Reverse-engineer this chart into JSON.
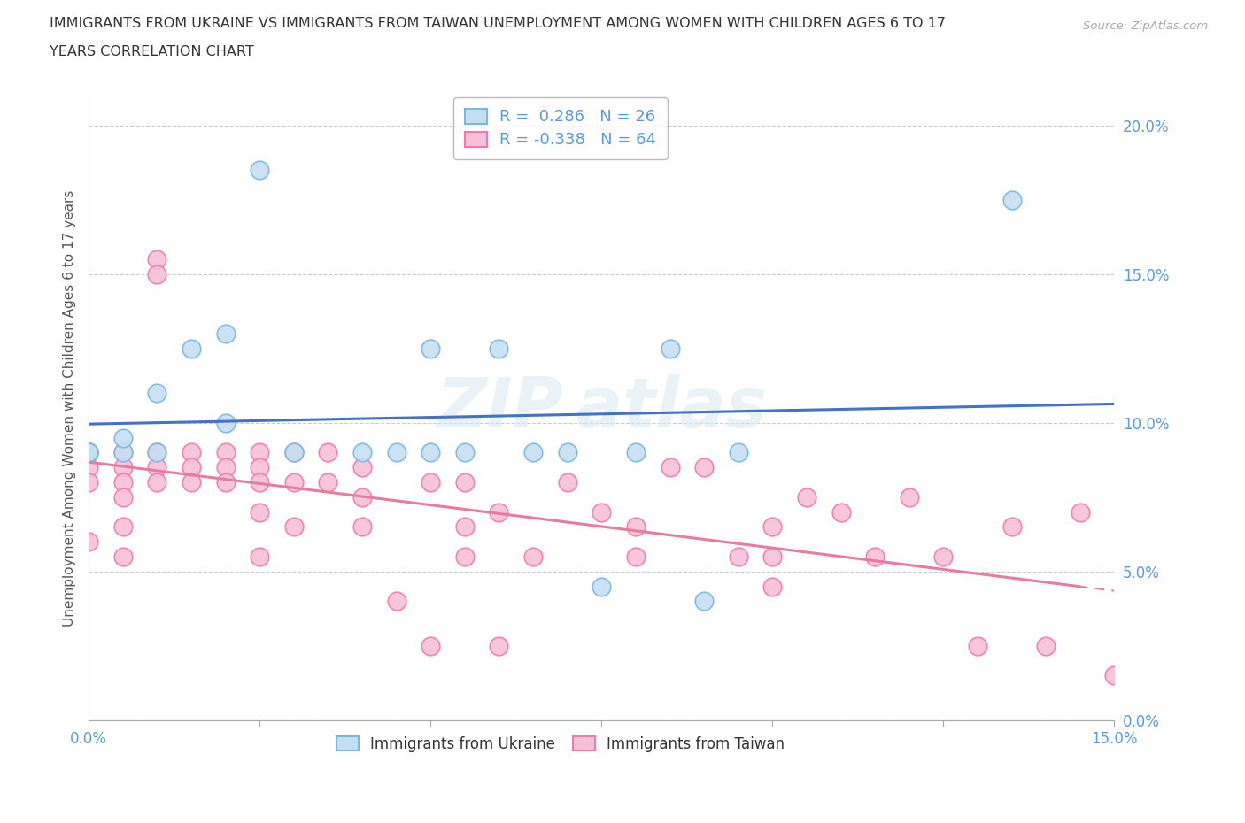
{
  "title_line1": "IMMIGRANTS FROM UKRAINE VS IMMIGRANTS FROM TAIWAN UNEMPLOYMENT AMONG WOMEN WITH CHILDREN AGES 6 TO 17",
  "title_line2": "YEARS CORRELATION CHART",
  "source": "Source: ZipAtlas.com",
  "ylabel": "Unemployment Among Women with Children Ages 6 to 17 years",
  "xlim": [
    0.0,
    0.15
  ],
  "ylim": [
    0.0,
    0.21
  ],
  "yticks": [
    0.0,
    0.05,
    0.1,
    0.15,
    0.2
  ],
  "ytick_labels": [
    "0.0%",
    "5.0%",
    "10.0%",
    "15.0%",
    "20.0%"
  ],
  "xtick_positions": [
    0.0,
    0.025,
    0.05,
    0.075,
    0.1,
    0.125,
    0.15
  ],
  "xtick_labels_show": [
    "0.0%",
    "",
    "",
    "",
    "",
    "",
    "15.0%"
  ],
  "ukraine_color": "#7ab8e0",
  "ukraine_fill": "#c5dff2",
  "taiwan_color": "#f07ab0",
  "taiwan_fill": "#f8c0d8",
  "ukraine_R": 0.286,
  "ukraine_N": 26,
  "taiwan_R": -0.338,
  "taiwan_N": 64,
  "legend_label_ukraine": "Immigrants from Ukraine",
  "legend_label_taiwan": "Immigrants from Taiwan",
  "ukraine_x": [
    0.0,
    0.0,
    0.0,
    0.005,
    0.005,
    0.01,
    0.01,
    0.015,
    0.02,
    0.02,
    0.025,
    0.03,
    0.04,
    0.045,
    0.05,
    0.05,
    0.055,
    0.06,
    0.065,
    0.07,
    0.075,
    0.08,
    0.085,
    0.09,
    0.095,
    0.135
  ],
  "ukraine_y": [
    0.09,
    0.09,
    0.09,
    0.09,
    0.095,
    0.09,
    0.11,
    0.125,
    0.1,
    0.13,
    0.185,
    0.09,
    0.09,
    0.09,
    0.09,
    0.125,
    0.09,
    0.125,
    0.09,
    0.09,
    0.045,
    0.09,
    0.125,
    0.04,
    0.09,
    0.175
  ],
  "taiwan_x": [
    0.0,
    0.0,
    0.0,
    0.0,
    0.0,
    0.005,
    0.005,
    0.005,
    0.005,
    0.005,
    0.005,
    0.01,
    0.01,
    0.01,
    0.01,
    0.01,
    0.015,
    0.015,
    0.015,
    0.02,
    0.02,
    0.02,
    0.025,
    0.025,
    0.025,
    0.025,
    0.025,
    0.03,
    0.03,
    0.03,
    0.035,
    0.035,
    0.04,
    0.04,
    0.04,
    0.045,
    0.05,
    0.05,
    0.055,
    0.055,
    0.055,
    0.06,
    0.06,
    0.065,
    0.07,
    0.075,
    0.08,
    0.08,
    0.085,
    0.09,
    0.095,
    0.1,
    0.1,
    0.1,
    0.105,
    0.11,
    0.115,
    0.12,
    0.125,
    0.13,
    0.135,
    0.14,
    0.145,
    0.15
  ],
  "taiwan_y": [
    0.09,
    0.09,
    0.085,
    0.08,
    0.06,
    0.09,
    0.085,
    0.08,
    0.075,
    0.065,
    0.055,
    0.155,
    0.15,
    0.09,
    0.085,
    0.08,
    0.09,
    0.085,
    0.08,
    0.09,
    0.085,
    0.08,
    0.09,
    0.085,
    0.08,
    0.07,
    0.055,
    0.09,
    0.08,
    0.065,
    0.09,
    0.08,
    0.085,
    0.075,
    0.065,
    0.04,
    0.08,
    0.025,
    0.08,
    0.065,
    0.055,
    0.07,
    0.025,
    0.055,
    0.08,
    0.07,
    0.065,
    0.055,
    0.085,
    0.085,
    0.055,
    0.065,
    0.055,
    0.045,
    0.075,
    0.07,
    0.055,
    0.075,
    0.055,
    0.025,
    0.065,
    0.025,
    0.07,
    0.015
  ],
  "bg_color": "#ffffff",
  "grid_color": "#cccccc",
  "title_color": "#333333",
  "axis_label_color": "#555555",
  "tick_color": "#5b9bd5",
  "ukraine_line_color": "#4472c4",
  "taiwan_line_color": "#e87ca0",
  "watermark_text": "ZIP atlas"
}
